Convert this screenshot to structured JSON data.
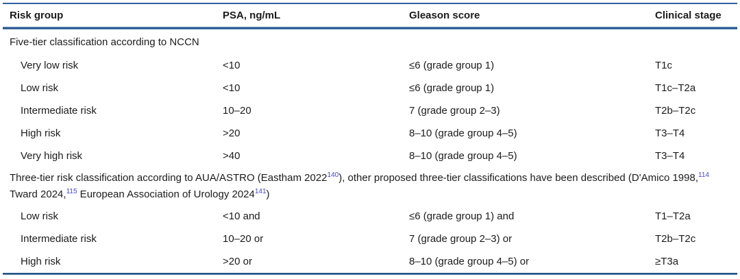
{
  "table": {
    "columns": {
      "risk_group": "Risk group",
      "psa": "PSA, ng/mL",
      "gleason": "Gleason score",
      "clinical_stage": "Clinical stage"
    },
    "sections": [
      {
        "title": "Five-tier classification according to NCCN",
        "rows": [
          [
            "Very low risk",
            "<10",
            "≤6 (grade group 1)",
            "T1c"
          ],
          [
            "Low risk",
            "<10",
            "≤6 (grade group 1)",
            "T1c–T2a"
          ],
          [
            "Intermediate risk",
            "10–20",
            "7 (grade group 2–3)",
            "T2b–T2c"
          ],
          [
            "High risk",
            ">20",
            "8–10 (grade group 4–5)",
            "T3–T4"
          ],
          [
            "Very high risk",
            ">40",
            "8–10 (grade group 4–5)",
            "T3–T4"
          ]
        ]
      },
      {
        "title_parts": [
          {
            "text": "Three-tier risk classification according to AUA/ASTRO (Eastham 2022"
          },
          {
            "sup": "140"
          },
          {
            "text": "), other proposed three-tier classifications have been described (D'Amico 1998,"
          },
          {
            "sup": "114"
          },
          {
            "text": " Tward 2024,"
          },
          {
            "sup": "115"
          },
          {
            "text": " European Association of Urology 2024"
          },
          {
            "sup": "141"
          },
          {
            "text": ")"
          }
        ],
        "rows": [
          [
            "Low risk",
            "<10 and",
            "≤6 (grade group 1) and",
            "T1–T2a"
          ],
          [
            "Intermediate risk",
            "10–20 or",
            "7 (grade group 2–3) or",
            "T2b–T2c"
          ],
          [
            "High risk",
            ">20 or",
            "8–10 (grade group 4–5) or",
            "≥T3a"
          ]
        ]
      }
    ]
  },
  "colors": {
    "rule_blue": "#2f5f9e",
    "superscript_blue": "#4444dd"
  }
}
